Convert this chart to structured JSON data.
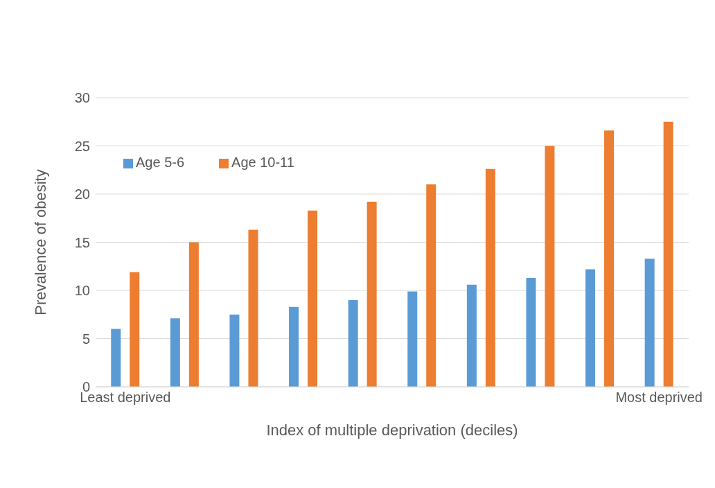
{
  "chart_data": {
    "type": "bar",
    "xlabel": "Index of multiple deprivation (deciles)",
    "ylabel": "Prevalence of obesity",
    "categories": [
      "Least deprived",
      null,
      null,
      null,
      null,
      null,
      null,
      null,
      null,
      "Most deprived"
    ],
    "series": [
      {
        "name": "Age 5-6",
        "color": "#5b9bd5",
        "values": [
          6.0,
          7.1,
          7.5,
          8.3,
          9.0,
          9.9,
          10.6,
          11.3,
          12.2,
          13.3
        ]
      },
      {
        "name": "Age 10-11",
        "color": "#ed7d31",
        "values": [
          11.9,
          15.0,
          16.3,
          18.3,
          19.2,
          21.0,
          22.6,
          25.0,
          26.6,
          27.5
        ]
      }
    ],
    "ylim": [
      0,
      30
    ],
    "yticks": [
      0,
      5,
      10,
      15,
      20,
      25,
      30
    ],
    "grid": "y",
    "legend": "top left"
  }
}
